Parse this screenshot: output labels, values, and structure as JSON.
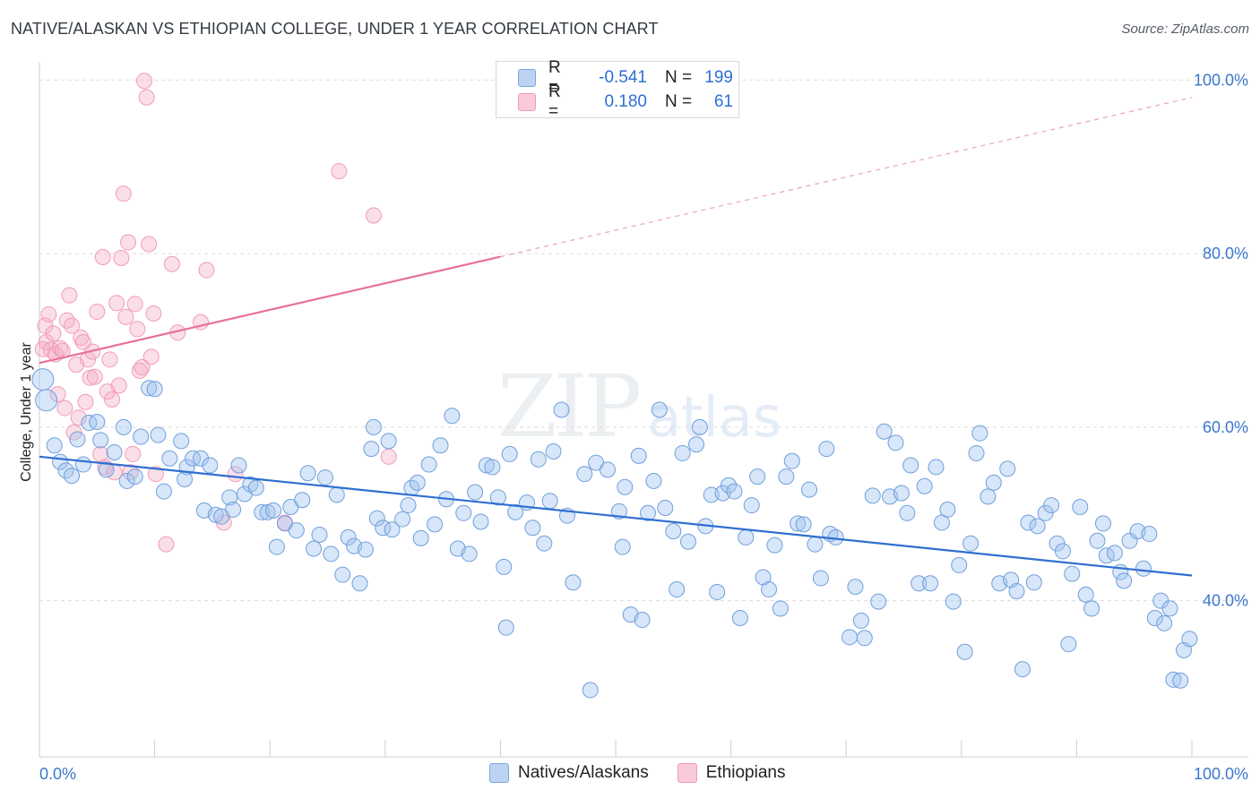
{
  "header": {
    "title": "NATIVE/ALASKAN VS ETHIOPIAN COLLEGE, UNDER 1 YEAR CORRELATION CHART",
    "source": "Source: ZipAtlas.com"
  },
  "watermark": {
    "zip": "ZIP",
    "atlas": "atlas"
  },
  "legend": {
    "rows": [
      {
        "r_label": "R =",
        "r_value": "-0.541",
        "n_label": "N =",
        "n_value": "199",
        "color": "#a8c6ee"
      },
      {
        "r_label": "R =",
        "r_value": "0.180",
        "n_label": "N =",
        "n_value": "61",
        "color": "#f5b5c9"
      }
    ]
  },
  "bottom_legend": {
    "natives": "Natives/Alaskans",
    "ethiopians": "Ethiopians"
  },
  "chart_data": {
    "type": "scatter",
    "title": "NATIVE/ALASKAN VS ETHIOPIAN COLLEGE, UNDER 1 YEAR CORRELATION CHART",
    "xlabel": "",
    "ylabel": "College, Under 1 year",
    "xlim": [
      0,
      100
    ],
    "ylim": [
      22,
      102
    ],
    "x_tick_labels": [
      "0.0%",
      "100.0%"
    ],
    "y_ticks": [
      40,
      60,
      80,
      100
    ],
    "y_tick_labels": [
      "40.0%",
      "60.0%",
      "80.0%",
      "100.0%"
    ],
    "grid": true,
    "series": [
      {
        "name": "Natives/Alaskans",
        "color": "#7aa8e0",
        "r": -0.541,
        "n": 199,
        "trend": {
          "x": [
            0,
            100
          ],
          "y": [
            56.6,
            42.9
          ],
          "solid_to": 100
        },
        "points": [
          [
            0.3,
            65.5
          ],
          [
            0.6,
            63.1
          ],
          [
            1.3,
            57.9
          ],
          [
            1.8,
            56.0
          ],
          [
            2.3,
            55.0
          ],
          [
            2.8,
            54.4
          ],
          [
            3.3,
            58.6
          ],
          [
            3.8,
            55.7
          ],
          [
            4.3,
            60.5
          ],
          [
            5.0,
            60.6
          ],
          [
            5.3,
            58.5
          ],
          [
            5.8,
            55.1
          ],
          [
            6.5,
            57.1
          ],
          [
            7.3,
            60.0
          ],
          [
            7.6,
            53.8
          ],
          [
            8.3,
            54.3
          ],
          [
            8.8,
            58.9
          ],
          [
            9.5,
            64.5
          ],
          [
            10.0,
            64.4
          ],
          [
            10.3,
            59.1
          ],
          [
            10.8,
            52.6
          ],
          [
            11.3,
            56.4
          ],
          [
            12.3,
            58.4
          ],
          [
            12.6,
            54.0
          ],
          [
            12.8,
            55.4
          ],
          [
            13.3,
            56.4
          ],
          [
            14.0,
            56.4
          ],
          [
            14.3,
            50.4
          ],
          [
            14.8,
            55.6
          ],
          [
            15.3,
            49.9
          ],
          [
            15.8,
            49.7
          ],
          [
            16.5,
            51.9
          ],
          [
            16.8,
            50.5
          ],
          [
            17.3,
            55.6
          ],
          [
            17.8,
            52.3
          ],
          [
            18.3,
            53.4
          ],
          [
            18.8,
            53.0
          ],
          [
            19.3,
            50.2
          ],
          [
            19.8,
            50.2
          ],
          [
            20.3,
            50.4
          ],
          [
            20.6,
            46.2
          ],
          [
            21.3,
            48.9
          ],
          [
            21.8,
            50.8
          ],
          [
            22.3,
            48.1
          ],
          [
            22.8,
            51.6
          ],
          [
            23.3,
            54.7
          ],
          [
            23.8,
            46.0
          ],
          [
            24.3,
            47.6
          ],
          [
            24.8,
            54.2
          ],
          [
            25.3,
            45.4
          ],
          [
            25.8,
            52.2
          ],
          [
            26.3,
            43.0
          ],
          [
            26.8,
            47.3
          ],
          [
            27.3,
            46.3
          ],
          [
            27.8,
            42.0
          ],
          [
            28.3,
            45.9
          ],
          [
            28.8,
            57.5
          ],
          [
            29.0,
            60.0
          ],
          [
            29.3,
            49.5
          ],
          [
            29.8,
            48.4
          ],
          [
            30.3,
            58.4
          ],
          [
            30.6,
            48.2
          ],
          [
            31.5,
            49.4
          ],
          [
            32.0,
            51.0
          ],
          [
            32.3,
            53.0
          ],
          [
            32.8,
            53.6
          ],
          [
            33.1,
            47.2
          ],
          [
            33.8,
            55.7
          ],
          [
            34.3,
            48.8
          ],
          [
            34.8,
            57.9
          ],
          [
            35.3,
            51.7
          ],
          [
            35.8,
            61.3
          ],
          [
            36.3,
            46.0
          ],
          [
            36.8,
            50.1
          ],
          [
            37.3,
            45.4
          ],
          [
            37.8,
            52.5
          ],
          [
            38.3,
            49.1
          ],
          [
            38.8,
            55.6
          ],
          [
            39.3,
            55.4
          ],
          [
            39.8,
            51.9
          ],
          [
            40.3,
            43.9
          ],
          [
            40.5,
            36.9
          ],
          [
            40.8,
            56.9
          ],
          [
            41.3,
            50.2
          ],
          [
            42.3,
            51.3
          ],
          [
            42.8,
            48.4
          ],
          [
            43.3,
            56.3
          ],
          [
            43.8,
            46.6
          ],
          [
            44.3,
            51.5
          ],
          [
            44.6,
            57.2
          ],
          [
            45.3,
            62.0
          ],
          [
            45.8,
            49.8
          ],
          [
            46.3,
            42.1
          ],
          [
            47.3,
            54.6
          ],
          [
            47.8,
            29.7
          ],
          [
            48.3,
            55.9
          ],
          [
            49.3,
            55.1
          ],
          [
            50.3,
            50.3
          ],
          [
            50.6,
            46.2
          ],
          [
            50.8,
            53.1
          ],
          [
            51.3,
            38.4
          ],
          [
            52.0,
            56.7
          ],
          [
            52.3,
            37.8
          ],
          [
            52.8,
            50.1
          ],
          [
            53.3,
            53.8
          ],
          [
            53.8,
            62.0
          ],
          [
            54.3,
            50.7
          ],
          [
            55.0,
            48.0
          ],
          [
            55.3,
            41.3
          ],
          [
            55.8,
            57.0
          ],
          [
            56.3,
            46.8
          ],
          [
            57.0,
            58.0
          ],
          [
            57.3,
            60.0
          ],
          [
            57.8,
            48.6
          ],
          [
            58.3,
            52.2
          ],
          [
            58.8,
            41.0
          ],
          [
            59.3,
            52.4
          ],
          [
            59.8,
            53.3
          ],
          [
            60.3,
            52.6
          ],
          [
            60.8,
            38.0
          ],
          [
            61.3,
            47.3
          ],
          [
            61.8,
            51.0
          ],
          [
            62.3,
            54.3
          ],
          [
            62.8,
            42.7
          ],
          [
            63.3,
            41.3
          ],
          [
            63.8,
            46.4
          ],
          [
            64.3,
            39.1
          ],
          [
            64.8,
            54.3
          ],
          [
            65.3,
            56.1
          ],
          [
            65.8,
            48.9
          ],
          [
            66.3,
            48.8
          ],
          [
            66.8,
            52.8
          ],
          [
            67.3,
            46.5
          ],
          [
            67.8,
            42.6
          ],
          [
            68.3,
            57.5
          ],
          [
            68.6,
            47.7
          ],
          [
            69.1,
            47.3
          ],
          [
            70.3,
            35.8
          ],
          [
            70.8,
            41.6
          ],
          [
            71.3,
            37.7
          ],
          [
            71.6,
            35.7
          ],
          [
            72.3,
            52.1
          ],
          [
            72.8,
            39.9
          ],
          [
            73.3,
            59.5
          ],
          [
            73.8,
            52.0
          ],
          [
            74.3,
            58.2
          ],
          [
            74.8,
            52.4
          ],
          [
            75.3,
            50.1
          ],
          [
            75.6,
            55.6
          ],
          [
            76.3,
            42.0
          ],
          [
            76.8,
            53.2
          ],
          [
            77.3,
            42.0
          ],
          [
            77.8,
            55.4
          ],
          [
            78.3,
            49.0
          ],
          [
            78.8,
            50.5
          ],
          [
            79.3,
            39.9
          ],
          [
            79.8,
            44.1
          ],
          [
            80.3,
            34.1
          ],
          [
            80.8,
            46.6
          ],
          [
            81.3,
            57.0
          ],
          [
            81.6,
            59.3
          ],
          [
            82.3,
            52.0
          ],
          [
            82.8,
            53.6
          ],
          [
            83.3,
            42.0
          ],
          [
            84.0,
            55.2
          ],
          [
            84.3,
            42.4
          ],
          [
            84.8,
            41.1
          ],
          [
            85.3,
            32.1
          ],
          [
            85.8,
            49.0
          ],
          [
            86.3,
            42.1
          ],
          [
            86.6,
            48.6
          ],
          [
            87.3,
            50.1
          ],
          [
            87.8,
            51.0
          ],
          [
            88.3,
            46.6
          ],
          [
            88.8,
            45.7
          ],
          [
            89.3,
            35.0
          ],
          [
            89.6,
            43.1
          ],
          [
            90.3,
            50.8
          ],
          [
            90.8,
            40.7
          ],
          [
            91.3,
            39.1
          ],
          [
            91.8,
            46.9
          ],
          [
            92.3,
            48.9
          ],
          [
            92.6,
            45.2
          ],
          [
            93.3,
            45.5
          ],
          [
            93.8,
            43.3
          ],
          [
            94.1,
            42.3
          ],
          [
            94.6,
            46.9
          ],
          [
            95.3,
            48.0
          ],
          [
            95.8,
            43.7
          ],
          [
            96.3,
            47.7
          ],
          [
            96.8,
            38.0
          ],
          [
            97.3,
            40.0
          ],
          [
            97.6,
            37.4
          ],
          [
            98.1,
            39.1
          ],
          [
            98.4,
            30.9
          ],
          [
            99.0,
            30.8
          ],
          [
            99.3,
            34.3
          ],
          [
            99.8,
            35.6
          ]
        ]
      },
      {
        "name": "Ethiopians",
        "color": "#f29ab8",
        "r": 0.18,
        "n": 61,
        "trend": {
          "x": [
            0,
            100
          ],
          "y": [
            67.4,
            98.0
          ],
          "solid_to": 40
        },
        "points": [
          [
            0.3,
            69.0
          ],
          [
            0.5,
            71.7
          ],
          [
            0.6,
            69.8
          ],
          [
            0.8,
            73.0
          ],
          [
            1.0,
            68.9
          ],
          [
            1.2,
            70.8
          ],
          [
            1.4,
            68.4
          ],
          [
            1.6,
            63.8
          ],
          [
            1.8,
            69.1
          ],
          [
            2.0,
            68.8
          ],
          [
            2.2,
            62.2
          ],
          [
            2.4,
            72.3
          ],
          [
            2.6,
            75.2
          ],
          [
            2.8,
            71.7
          ],
          [
            3.0,
            59.4
          ],
          [
            3.2,
            67.2
          ],
          [
            3.4,
            61.1
          ],
          [
            3.6,
            70.3
          ],
          [
            3.8,
            69.8
          ],
          [
            4.0,
            62.9
          ],
          [
            4.2,
            67.8
          ],
          [
            4.4,
            65.7
          ],
          [
            4.6,
            68.7
          ],
          [
            4.8,
            65.8
          ],
          [
            5.0,
            73.3
          ],
          [
            5.3,
            56.9
          ],
          [
            5.5,
            79.6
          ],
          [
            5.7,
            55.4
          ],
          [
            5.9,
            64.1
          ],
          [
            6.1,
            67.8
          ],
          [
            6.3,
            63.2
          ],
          [
            6.5,
            54.8
          ],
          [
            6.7,
            74.3
          ],
          [
            6.9,
            64.8
          ],
          [
            7.1,
            79.5
          ],
          [
            7.3,
            86.9
          ],
          [
            7.5,
            72.7
          ],
          [
            7.7,
            81.3
          ],
          [
            7.9,
            54.8
          ],
          [
            8.1,
            56.9
          ],
          [
            8.3,
            74.2
          ],
          [
            8.5,
            71.3
          ],
          [
            8.7,
            66.5
          ],
          [
            8.9,
            66.9
          ],
          [
            9.1,
            99.9
          ],
          [
            9.3,
            98.0
          ],
          [
            9.5,
            81.1
          ],
          [
            9.7,
            68.1
          ],
          [
            9.9,
            73.1
          ],
          [
            10.1,
            54.6
          ],
          [
            11.0,
            46.5
          ],
          [
            11.5,
            78.8
          ],
          [
            12.0,
            70.9
          ],
          [
            14.0,
            72.1
          ],
          [
            14.5,
            78.1
          ],
          [
            16.0,
            49.0
          ],
          [
            17.0,
            54.6
          ],
          [
            21.3,
            49.0
          ],
          [
            26.0,
            89.5
          ],
          [
            29.0,
            84.4
          ],
          [
            30.3,
            56.6
          ]
        ]
      }
    ]
  }
}
